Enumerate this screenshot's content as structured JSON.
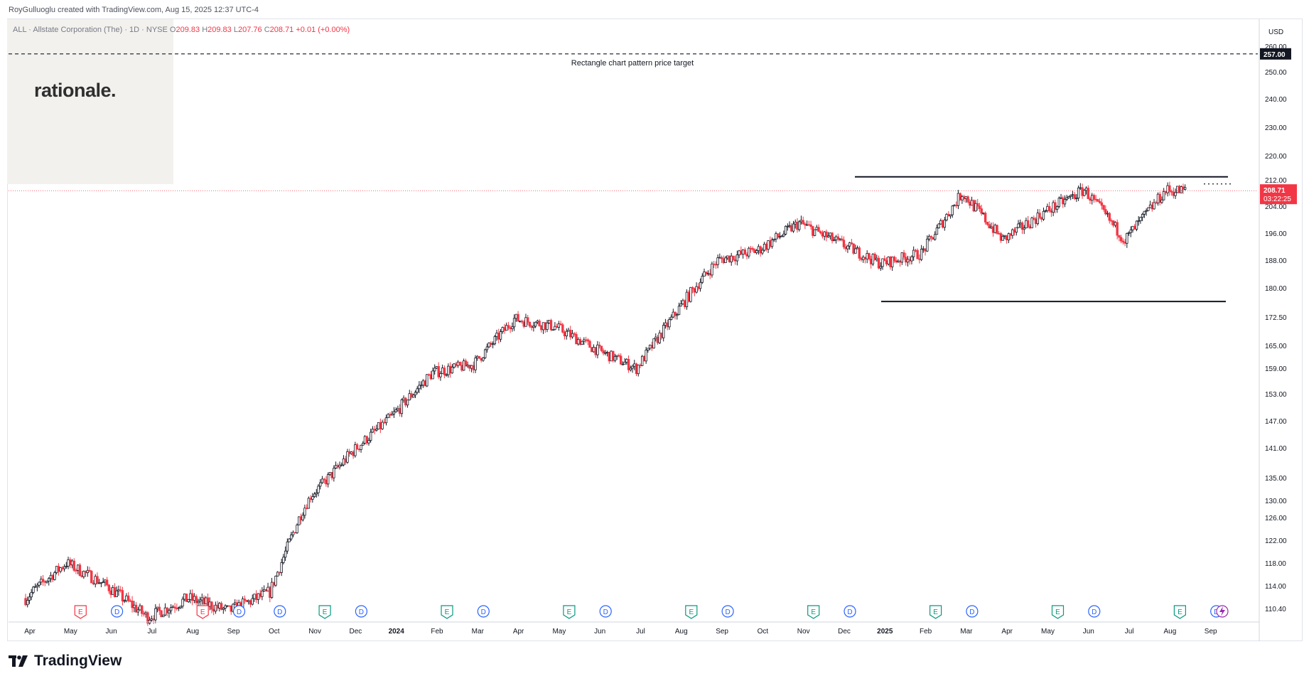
{
  "header": {
    "credit": "RoyGulluoglu created with TradingView.com, Aug 15, 2025 12:37 UTC-4"
  },
  "symbol": {
    "name": "ALL · Allstate Corporation (The) · 1D · NYSE",
    "open_label": "O",
    "open": "209.83",
    "high_label": "H",
    "high": "209.83",
    "low_label": "L",
    "low": "207.76",
    "close_label": "C",
    "close": "208.71",
    "change": "+0.01 (+0.00%)"
  },
  "watermark": {
    "text": "rationale."
  },
  "brand": {
    "text": "TradingView",
    "logo": "tradingview-logo-icon"
  },
  "colors": {
    "up": "#131722",
    "down": "#f23645",
    "event_earnings": "#089981",
    "event_earnings_recent": "#f23645",
    "event_dividend": "#2962ff",
    "price_line": "#f23645",
    "target_label_bg": "#131722"
  },
  "chart_data": {
    "type": "candlestick",
    "currency": "USD",
    "timeframe": "1D",
    "y_ticks": [
      110.4,
      114,
      118,
      122,
      126,
      130,
      135,
      141,
      147,
      153,
      159,
      165,
      172.5,
      180,
      188,
      196,
      204,
      212,
      220,
      230,
      240,
      250,
      260
    ],
    "y_tick_labels": [
      "110.40",
      "114.00",
      "118.00",
      "122.00",
      "126.00",
      "130.00",
      "135.00",
      "141.00",
      "147.00",
      "153.00",
      "159.00",
      "165.00",
      "172.50",
      "180.00",
      "188.00",
      "196.00",
      "204.00",
      "212.00",
      "220.00",
      "230.00",
      "240.00",
      "250.00",
      "260.00"
    ],
    "x_ticks": [
      "Apr",
      "May",
      "Jun",
      "Jul",
      "Aug",
      "Sep",
      "Oct",
      "Nov",
      "Dec",
      "2024",
      "Feb",
      "Mar",
      "Apr",
      "May",
      "Jun",
      "Jul",
      "Aug",
      "Sep",
      "Oct",
      "Nov",
      "Dec",
      "2025",
      "Feb",
      "Mar",
      "Apr",
      "May",
      "Jun",
      "Jul",
      "Aug",
      "Sep"
    ],
    "bold_x_ticks": [
      "2024",
      "2025"
    ],
    "price_path_monthly": [
      {
        "month": "Apr 2023",
        "close": 112
      },
      {
        "month": "May 2023",
        "close": 118
      },
      {
        "month": "Jun 2023",
        "close": 114
      },
      {
        "month": "Jul 2023",
        "close": 109
      },
      {
        "month": "Aug 2023",
        "close": 112
      },
      {
        "month": "Sep 2023",
        "close": 110
      },
      {
        "month": "Oct 2023",
        "close": 113
      },
      {
        "month": "Nov 2023",
        "close": 131
      },
      {
        "month": "Dec 2023",
        "close": 140
      },
      {
        "month": "Jan 2024",
        "close": 148
      },
      {
        "month": "Feb 2024",
        "close": 158
      },
      {
        "month": "Mar 2024",
        "close": 160
      },
      {
        "month": "Apr 2024",
        "close": 172
      },
      {
        "month": "May 2024",
        "close": 170
      },
      {
        "month": "Jun 2024",
        "close": 164
      },
      {
        "month": "Jul 2024",
        "close": 159
      },
      {
        "month": "Aug 2024",
        "close": 174
      },
      {
        "month": "Sep 2024",
        "close": 188
      },
      {
        "month": "Oct 2024",
        "close": 191
      },
      {
        "month": "Nov 2024",
        "close": 199
      },
      {
        "month": "Dec 2024",
        "close": 193
      },
      {
        "month": "Jan 2025",
        "close": 187
      },
      {
        "month": "Feb 2025",
        "close": 190
      },
      {
        "month": "Mar 2025",
        "close": 208
      },
      {
        "month": "Apr 2025",
        "close": 194
      },
      {
        "month": "May 2025",
        "close": 202
      },
      {
        "month": "Jun 2025",
        "close": 209
      },
      {
        "month": "Jul 2025",
        "close": 194
      },
      {
        "month": "Aug 2025",
        "close": 208.71
      }
    ],
    "current_price": {
      "value": 208.71,
      "label": "208.71",
      "countdown": "03:22:25"
    },
    "target": {
      "value": 257.0,
      "label": "257.00",
      "annotation": "Rectangle chart pattern price target"
    },
    "rectangle": {
      "resistance": 213,
      "support": 176.5
    },
    "events": [
      {
        "type": "E",
        "month": "May 2023"
      },
      {
        "type": "D",
        "month": "Jun 2023"
      },
      {
        "type": "E",
        "month": "Aug 2023"
      },
      {
        "type": "D",
        "month": "Sep 2023"
      },
      {
        "type": "D",
        "month": "Oct 2023"
      },
      {
        "type": "E",
        "month": "Nov 2023"
      },
      {
        "type": "D",
        "month": "Dec 2023"
      },
      {
        "type": "E",
        "month": "Feb 2024"
      },
      {
        "type": "D",
        "month": "Mar 2024"
      },
      {
        "type": "E",
        "month": "May 2024"
      },
      {
        "type": "D",
        "month": "Jun 2024"
      },
      {
        "type": "E",
        "month": "Aug 2024"
      },
      {
        "type": "D",
        "month": "Sep 2024"
      },
      {
        "type": "E",
        "month": "Nov 2024"
      },
      {
        "type": "D",
        "month": "Dec 2024"
      },
      {
        "type": "E",
        "month": "Feb 2025"
      },
      {
        "type": "D",
        "month": "Mar 2025"
      },
      {
        "type": "E",
        "month": "May 2025"
      },
      {
        "type": "D",
        "month": "Jun 2025"
      },
      {
        "type": "E",
        "month": "Aug 2025"
      },
      {
        "type": "D",
        "month": "Sep 2025"
      }
    ]
  }
}
